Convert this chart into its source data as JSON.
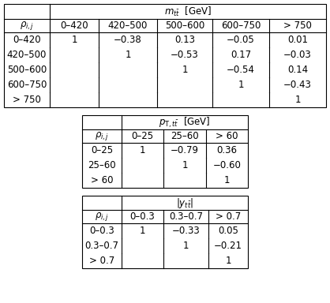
{
  "table1": {
    "title": "$m_{t\\bar{t}}$  [GeV]",
    "col_header": [
      "0–420",
      "420–500",
      "500–600",
      "600–750",
      "> 750"
    ],
    "row_header": [
      "$\\rho_{i,j}$",
      "0–420",
      "420–500",
      "500–600",
      "600–750",
      "> 750"
    ],
    "data": [
      [
        "1",
        "−0.38",
        "0.13",
        "−0.05",
        "0.01"
      ],
      [
        "",
        "1",
        "−0.53",
        "0.17",
        "−0.03"
      ],
      [
        "",
        "",
        "1",
        "−0.54",
        "0.14"
      ],
      [
        "",
        "",
        "",
        "1",
        "−0.43"
      ],
      [
        "",
        "",
        "",
        "",
        "1"
      ]
    ]
  },
  "table2": {
    "title": "$p_{\\mathrm{T},t\\bar{t}}$  [GeV]",
    "col_header": [
      "0–25",
      "25–60",
      "> 60"
    ],
    "row_header": [
      "$\\rho_{i,j}$",
      "0–25",
      "25–60",
      "> 60"
    ],
    "data": [
      [
        "1",
        "−0.79",
        "0.36"
      ],
      [
        "",
        "1",
        "−0.60"
      ],
      [
        "",
        "",
        "1"
      ]
    ]
  },
  "table3": {
    "title": "$|y_{t\\bar{t}}|$",
    "col_header": [
      "0–0.3",
      "0.3–0.7",
      "> 0.7"
    ],
    "row_header": [
      "$\\rho_{i,j}$",
      "0–0.3",
      "0.3–0.7",
      "> 0.7"
    ],
    "data": [
      [
        "1",
        "−0.33",
        "0.05"
      ],
      [
        "",
        "1",
        "−0.21"
      ],
      [
        "",
        "",
        "1"
      ]
    ]
  },
  "bg_color": "#ffffff",
  "border_color": "#000000",
  "text_color": "#000000",
  "fontsize": 8.5,
  "header_fontsize": 8.5
}
